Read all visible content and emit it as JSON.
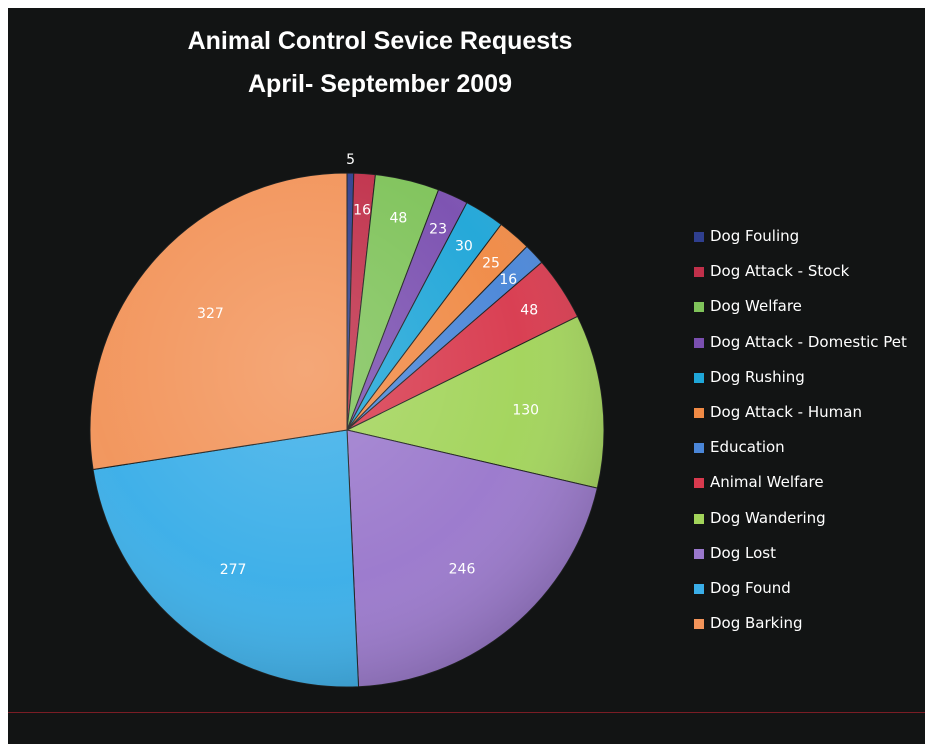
{
  "chart_data": {
    "type": "pie",
    "title": "Animal Control Sevice Requests",
    "subtitle": "April- September 2009",
    "legend_position": "right",
    "categories": [
      "Dog Fouling",
      "Dog Attack - Stock",
      "Dog Welfare",
      "Dog Attack - Domestic Pet",
      "Dog Rushing",
      "Dog Attack - Human",
      "Education",
      "Animal Welfare",
      "Dog Wandering",
      "Dog Lost",
      "Dog Found",
      "Dog Barking"
    ],
    "values": [
      5,
      16,
      48,
      23,
      30,
      25,
      16,
      48,
      130,
      246,
      277,
      327
    ],
    "colors": [
      "#2f3f8f",
      "#c0304a",
      "#7fc35a",
      "#7a4fb0",
      "#1fa6d8",
      "#f08a45",
      "#4a86d8",
      "#d83a4e",
      "#a2d45a",
      "#9a78cc",
      "#3aaee8",
      "#f2945a"
    ]
  }
}
